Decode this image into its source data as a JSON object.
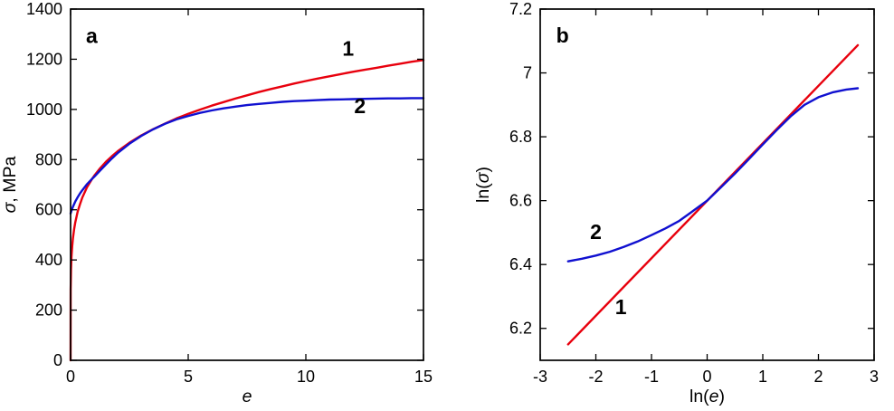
{
  "figure": {
    "background": "#ffffff"
  },
  "chart_data": [
    {
      "type": "line",
      "title": "",
      "panel_label": "a",
      "xlabel": "e",
      "ylabel": "σ, MPa",
      "xlim": [
        0,
        15
      ],
      "ylim": [
        0,
        1400
      ],
      "xticks": [
        0,
        5,
        10,
        15
      ],
      "xtick_labels": [
        "0",
        "5",
        "10",
        "15"
      ],
      "yticks": [
        0,
        200,
        400,
        600,
        800,
        1000,
        1200,
        1400
      ],
      "ytick_labels": [
        "0",
        "200",
        "400",
        "600",
        "800",
        "1000",
        "1200",
        "1400"
      ],
      "grid": false,
      "legend": "none",
      "series": [
        {
          "name": "1",
          "color": "#e8000d",
          "line_width": 2.4,
          "points": [
            [
              0,
              0
            ],
            [
              0.005,
              282
            ],
            [
              0.01,
              321
            ],
            [
              0.02,
              363
            ],
            [
              0.04,
              412
            ],
            [
              0.07,
              455
            ],
            [
              0.1,
              486
            ],
            [
              0.15,
              522
            ],
            [
              0.2,
              550
            ],
            [
              0.3,
              592
            ],
            [
              0.4,
              622
            ],
            [
              0.5,
              649
            ],
            [
              0.7,
              690
            ],
            [
              0.9,
              721
            ],
            [
              1,
              735
            ],
            [
              1.25,
              765
            ],
            [
              1.5,
              791
            ],
            [
              1.75,
              813
            ],
            [
              2,
              833
            ],
            [
              2.5,
              867
            ],
            [
              3,
              896
            ],
            [
              3.5,
              921
            ],
            [
              4,
              943
            ],
            [
              4.5,
              964
            ],
            [
              5,
              982
            ],
            [
              5.5,
              999
            ],
            [
              6,
              1015
            ],
            [
              6.5,
              1029
            ],
            [
              7,
              1043
            ],
            [
              7.5,
              1056
            ],
            [
              8,
              1069
            ],
            [
              8.5,
              1081
            ],
            [
              9,
              1092
            ],
            [
              9.5,
              1103
            ],
            [
              10,
              1113
            ],
            [
              10.5,
              1123
            ],
            [
              11,
              1132
            ],
            [
              11.5,
              1141
            ],
            [
              12,
              1150
            ],
            [
              12.5,
              1158
            ],
            [
              13,
              1166
            ],
            [
              13.5,
              1174
            ],
            [
              14,
              1182
            ],
            [
              14.5,
              1190
            ],
            [
              15,
              1197
            ]
          ]
        },
        {
          "name": "2",
          "color": "#1010d0",
          "line_width": 2.4,
          "points": [
            [
              0,
              585
            ],
            [
              0.05,
              600
            ],
            [
              0.1,
              612
            ],
            [
              0.2,
              633
            ],
            [
              0.3,
              650
            ],
            [
              0.4,
              665
            ],
            [
              0.5,
              678
            ],
            [
              0.7,
              702
            ],
            [
              0.9,
              722
            ],
            [
              1,
              731
            ],
            [
              1.25,
              756
            ],
            [
              1.5,
              780
            ],
            [
              1.75,
              804
            ],
            [
              2,
              826
            ],
            [
              2.5,
              863
            ],
            [
              3,
              894
            ],
            [
              3.5,
              920
            ],
            [
              4,
              942
            ],
            [
              4.5,
              960
            ],
            [
              5,
              974
            ],
            [
              5.5,
              986
            ],
            [
              6,
              996
            ],
            [
              6.5,
              1004
            ],
            [
              7,
              1011
            ],
            [
              7.5,
              1017
            ],
            [
              8,
              1022
            ],
            [
              8.5,
              1026
            ],
            [
              9,
              1030
            ],
            [
              9.5,
              1033
            ],
            [
              10,
              1035
            ],
            [
              10.5,
              1037
            ],
            [
              11,
              1039
            ],
            [
              11.5,
              1040
            ],
            [
              12,
              1041
            ],
            [
              12.5,
              1042
            ],
            [
              13,
              1043
            ],
            [
              13.5,
              1044
            ],
            [
              14,
              1044
            ],
            [
              14.5,
              1045
            ],
            [
              15,
              1045
            ]
          ]
        }
      ],
      "annotations": [
        {
          "text": "a",
          "x": 0.9,
          "y": 1265
        },
        {
          "text": "1",
          "x": 11.8,
          "y": 1215
        },
        {
          "text": "2",
          "x": 12.3,
          "y": 985
        }
      ]
    },
    {
      "type": "line",
      "title": "",
      "panel_label": "b",
      "xlabel": "ln(e)",
      "ylabel": "ln(σ)",
      "xlim": [
        -3,
        3
      ],
      "ylim": [
        6.1,
        7.2
      ],
      "xticks": [
        -3,
        -2,
        -1,
        0,
        1,
        2,
        3
      ],
      "xtick_labels": [
        "-3",
        "-2",
        "-1",
        "0",
        "1",
        "2",
        "3"
      ],
      "yticks": [
        6.2,
        6.4,
        6.6,
        6.8,
        7,
        7.2
      ],
      "ytick_labels": [
        "6.2",
        "6.4",
        "6.6",
        "6.8",
        "7",
        "7.2"
      ],
      "grid": false,
      "legend": "none",
      "series": [
        {
          "name": "1",
          "color": "#e8000d",
          "line_width": 2.4,
          "points": [
            [
              -2.5,
              6.15
            ],
            [
              2.708,
              7.087
            ]
          ]
        },
        {
          "name": "2",
          "color": "#1010d0",
          "line_width": 2.4,
          "points": [
            [
              -2.5,
              6.41
            ],
            [
              -2.25,
              6.418
            ],
            [
              -2,
              6.428
            ],
            [
              -1.75,
              6.44
            ],
            [
              -1.5,
              6.455
            ],
            [
              -1.25,
              6.472
            ],
            [
              -1,
              6.492
            ],
            [
              -0.75,
              6.513
            ],
            [
              -0.5,
              6.537
            ],
            [
              -0.25,
              6.568
            ],
            [
              0,
              6.6
            ],
            [
              0.25,
              6.642
            ],
            [
              0.5,
              6.685
            ],
            [
              0.75,
              6.73
            ],
            [
              1,
              6.776
            ],
            [
              1.25,
              6.821
            ],
            [
              1.5,
              6.864
            ],
            [
              1.75,
              6.9
            ],
            [
              2,
              6.924
            ],
            [
              2.25,
              6.939
            ],
            [
              2.5,
              6.948
            ],
            [
              2.708,
              6.952
            ]
          ]
        }
      ],
      "annotations": [
        {
          "text": "b",
          "x": -2.6,
          "y": 7.095
        },
        {
          "text": "2",
          "x": -2.0,
          "y": 6.48
        },
        {
          "text": "1",
          "x": -1.55,
          "y": 6.245
        }
      ]
    }
  ]
}
